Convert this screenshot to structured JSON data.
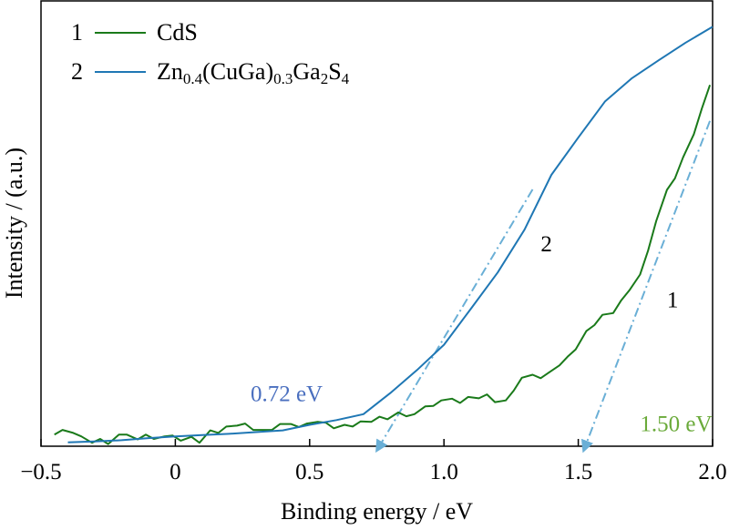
{
  "chart_data": {
    "type": "line",
    "xlabel": "Binding energy / eV",
    "ylabel": "Intensity / (a.u.)",
    "xlim": [
      -0.5,
      2.0
    ],
    "ylim": [
      0,
      100
    ],
    "xticks": [
      -0.5,
      0,
      0.5,
      1.0,
      1.5,
      2.0
    ],
    "xtick_labels": [
      "−0.5",
      "0",
      "0.5",
      "1.0",
      "1.5",
      "2.0"
    ],
    "grid": false,
    "legend_position": "top-left",
    "series": [
      {
        "id": "s1",
        "number": "1",
        "name_main": "CdS",
        "color": "#1a7a1a",
        "x": [
          -0.45,
          -0.42,
          -0.38,
          -0.35,
          -0.31,
          -0.28,
          -0.25,
          -0.21,
          -0.18,
          -0.14,
          -0.11,
          -0.08,
          -0.04,
          -0.01,
          0.02,
          0.06,
          0.09,
          0.13,
          0.16,
          0.19,
          0.23,
          0.26,
          0.29,
          0.33,
          0.36,
          0.39,
          0.43,
          0.46,
          0.49,
          0.53,
          0.56,
          0.59,
          0.63,
          0.66,
          0.69,
          0.73,
          0.76,
          0.79,
          0.83,
          0.86,
          0.89,
          0.93,
          0.96,
          0.99,
          1.03,
          1.06,
          1.09,
          1.13,
          1.16,
          1.19,
          1.23,
          1.26,
          1.29,
          1.33,
          1.36,
          1.39,
          1.43,
          1.46,
          1.49,
          1.53,
          1.56,
          1.59,
          1.63,
          1.66,
          1.69,
          1.73,
          1.76,
          1.79,
          1.83,
          1.86,
          1.89,
          1.93,
          1.96,
          1.99
        ],
        "y": [
          2.7,
          3.8,
          3.1,
          2.3,
          0.8,
          1.7,
          0.5,
          2.7,
          2.7,
          1.6,
          2.7,
          1.7,
          2.3,
          2.5,
          1.3,
          2.2,
          0.8,
          3.7,
          3.1,
          4.6,
          4.8,
          5.3,
          3.8,
          3.8,
          3.8,
          5.2,
          5.2,
          4.5,
          5.3,
          5.7,
          5.5,
          4.2,
          5.0,
          4.6,
          5.8,
          5.7,
          6.9,
          6.3,
          7.9,
          7.0,
          7.5,
          9.3,
          9.4,
          10.7,
          11.1,
          10.1,
          11.5,
          11.2,
          12.1,
          10.3,
          10.7,
          13.0,
          16.0,
          16.7,
          15.9,
          17.2,
          18.9,
          20.9,
          22.6,
          26.9,
          28.3,
          30.7,
          31.1,
          34.1,
          36.4,
          40.1,
          45.7,
          52.6,
          59.9,
          62.6,
          67.5,
          72.9,
          78.9,
          84.4
        ]
      },
      {
        "id": "s2",
        "number": "2",
        "name_main": "Zn",
        "name_sub1": "0.4",
        "name_mid": "(CuGa)",
        "name_sub2": "0.3",
        "name_mid2": "Ga",
        "name_sub3": "2",
        "name_end": "S",
        "name_sub4": "4",
        "color": "#1f77b4",
        "x": [
          -0.4,
          -0.3,
          -0.2,
          -0.1,
          0.0,
          0.1,
          0.2,
          0.3,
          0.4,
          0.5,
          0.6,
          0.7,
          0.8,
          0.9,
          1.0,
          1.1,
          1.2,
          1.3,
          1.4,
          1.5,
          1.6,
          1.7,
          1.8,
          1.9,
          2.0
        ],
        "y": [
          0.9,
          1.1,
          1.4,
          1.9,
          2.3,
          2.6,
          2.9,
          3.3,
          3.7,
          5.0,
          6.1,
          7.5,
          12.4,
          17.8,
          23.7,
          32.1,
          40.6,
          50.6,
          63.4,
          72.1,
          80.6,
          86.0,
          90.2,
          94.3,
          98.0
        ]
      }
    ],
    "fit_lines": [
      {
        "id": "f2",
        "x": [
          0.75,
          1.33
        ],
        "y": [
          -1.0,
          60.0
        ],
        "arrow_at": "start",
        "color": "#6aafd6"
      },
      {
        "id": "f1",
        "x": [
          1.52,
          1.99
        ],
        "y": [
          -1.0,
          76.0
        ],
        "arrow_at": "start",
        "color": "#6aafd6"
      }
    ],
    "annotations": [
      {
        "id": "a-072",
        "text": "0.72 eV",
        "color": "#4a6fbf",
        "x": 0.28,
        "y": 10.5
      },
      {
        "id": "a-150",
        "text": "1.50 eV",
        "color": "#6aaa3a",
        "x": 1.73,
        "y": 3.5
      },
      {
        "id": "a-curve2",
        "text": "2",
        "color": "#000000",
        "x": 1.36,
        "y": 45.5
      },
      {
        "id": "a-curve1",
        "text": "1",
        "color": "#000000",
        "x": 1.83,
        "y": 32.5
      }
    ]
  }
}
